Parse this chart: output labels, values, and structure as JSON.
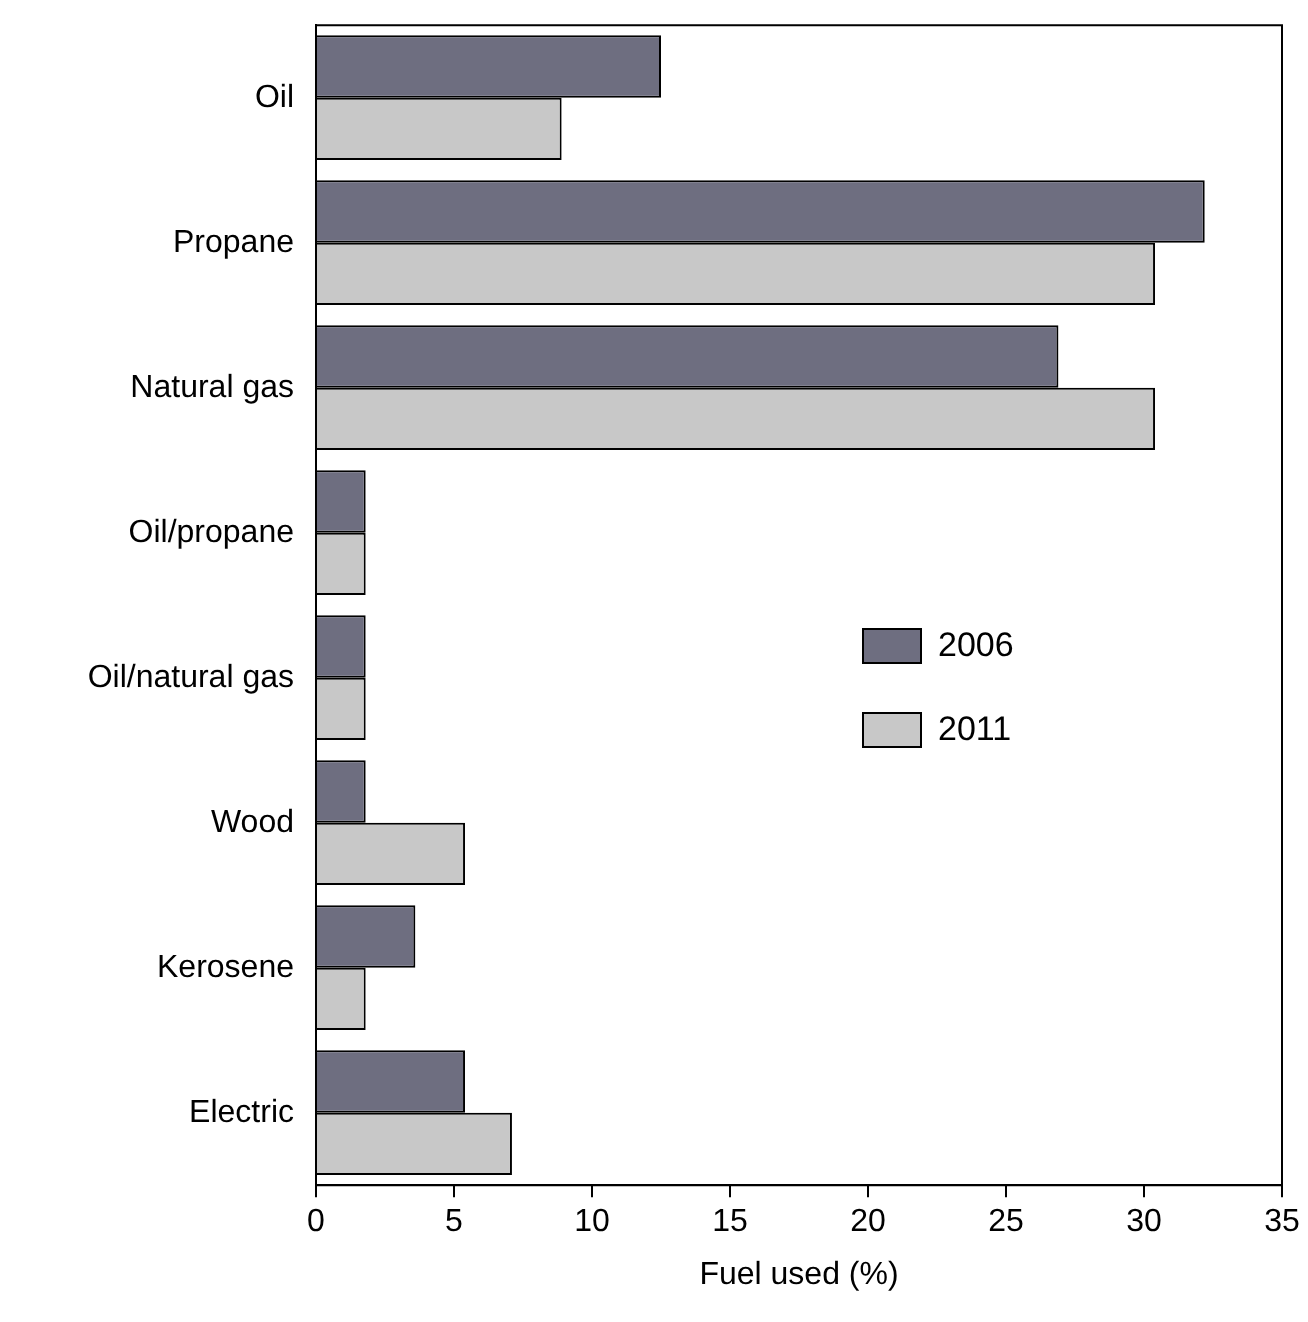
{
  "chart_data": {
    "type": "bar",
    "orientation": "horizontal",
    "xlabel": "Fuel used (%)",
    "categories": [
      "Oil",
      "Propane",
      "Natural gas",
      "Oil/propane",
      "Oil/natural gas",
      "Wood",
      "Kerosene",
      "Electric"
    ],
    "series": [
      {
        "name": "2006",
        "color": "#6e6e80",
        "values": [
          12.5,
          32.2,
          26.9,
          1.8,
          1.8,
          1.8,
          3.6,
          5.4
        ]
      },
      {
        "name": "2011",
        "color": "#c8c8c8",
        "values": [
          8.9,
          30.4,
          30.4,
          1.8,
          1.8,
          5.4,
          1.8,
          7.1
        ]
      }
    ],
    "xlim": [
      0,
      35
    ],
    "xticks": [
      0,
      5,
      10,
      15,
      20,
      25,
      30,
      35
    ],
    "grid": false,
    "legend": "right"
  }
}
